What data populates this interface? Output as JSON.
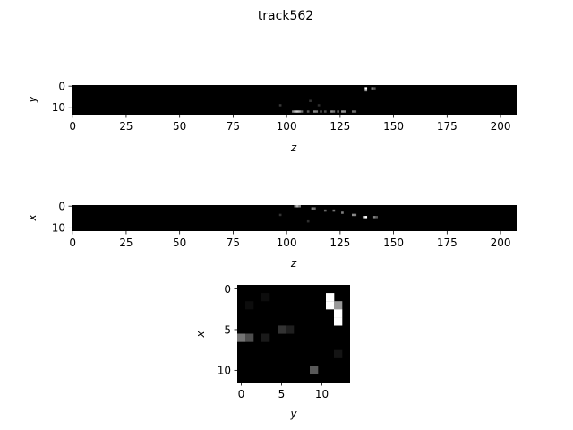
{
  "figure": {
    "title": "track562"
  },
  "chart_data": [
    {
      "type": "heatmap",
      "xlabel": "z",
      "ylabel": "y",
      "xlim": [
        0,
        207
      ],
      "ylim": [
        0,
        13
      ],
      "xticks": [
        0,
        25,
        50,
        75,
        100,
        125,
        150,
        175,
        200
      ],
      "yticks": [
        0,
        10
      ],
      "colormap": "gray",
      "bright_cells": [
        {
          "z": 97,
          "y": 9,
          "v": 0.22
        },
        {
          "z": 103,
          "y": 12,
          "v": 0.55
        },
        {
          "z": 104,
          "y": 12,
          "v": 0.75
        },
        {
          "z": 105,
          "y": 12,
          "v": 0.8
        },
        {
          "z": 106,
          "y": 12,
          "v": 0.7
        },
        {
          "z": 107,
          "y": 12,
          "v": 0.45
        },
        {
          "z": 110,
          "y": 12,
          "v": 0.35
        },
        {
          "z": 113,
          "y": 12,
          "v": 0.55
        },
        {
          "z": 114,
          "y": 12,
          "v": 0.5
        },
        {
          "z": 116,
          "y": 12,
          "v": 0.3
        },
        {
          "z": 118,
          "y": 12,
          "v": 0.3
        },
        {
          "z": 121,
          "y": 12,
          "v": 0.55
        },
        {
          "z": 122,
          "y": 12,
          "v": 0.45
        },
        {
          "z": 124,
          "y": 12,
          "v": 0.35
        },
        {
          "z": 126,
          "y": 12,
          "v": 0.6
        },
        {
          "z": 127,
          "y": 12,
          "v": 0.55
        },
        {
          "z": 131,
          "y": 12,
          "v": 0.45
        },
        {
          "z": 132,
          "y": 12,
          "v": 0.4
        },
        {
          "z": 137,
          "y": 1,
          "v": 1.0
        },
        {
          "z": 137,
          "y": 2,
          "v": 0.6
        },
        {
          "z": 140,
          "y": 1,
          "v": 0.5
        },
        {
          "z": 141,
          "y": 1,
          "v": 0.35
        },
        {
          "z": 111,
          "y": 7,
          "v": 0.2
        },
        {
          "z": 115,
          "y": 9,
          "v": 0.18
        }
      ]
    },
    {
      "type": "heatmap",
      "xlabel": "z",
      "ylabel": "x",
      "xlim": [
        0,
        207
      ],
      "ylim": [
        0,
        11
      ],
      "xticks": [
        0,
        25,
        50,
        75,
        100,
        125,
        150,
        175,
        200
      ],
      "yticks": [
        0,
        10
      ],
      "colormap": "gray",
      "bright_cells": [
        {
          "z": 104,
          "x": 0,
          "v": 0.55
        },
        {
          "z": 105,
          "x": 0,
          "v": 0.7
        },
        {
          "z": 106,
          "x": 0,
          "v": 0.5
        },
        {
          "z": 112,
          "x": 1,
          "v": 0.5
        },
        {
          "z": 113,
          "x": 1,
          "v": 0.45
        },
        {
          "z": 118,
          "x": 2,
          "v": 0.4
        },
        {
          "z": 122,
          "x": 2,
          "v": 0.45
        },
        {
          "z": 126,
          "x": 3,
          "v": 0.5
        },
        {
          "z": 131,
          "x": 4,
          "v": 0.55
        },
        {
          "z": 132,
          "x": 4,
          "v": 0.5
        },
        {
          "z": 136,
          "x": 5,
          "v": 0.6
        },
        {
          "z": 137,
          "x": 5,
          "v": 1.0
        },
        {
          "z": 141,
          "x": 5,
          "v": 0.5
        },
        {
          "z": 142,
          "x": 5,
          "v": 0.35
        },
        {
          "z": 97,
          "x": 4,
          "v": 0.2
        },
        {
          "z": 110,
          "x": 7,
          "v": 0.18
        }
      ]
    },
    {
      "type": "heatmap",
      "xlabel": "y",
      "ylabel": "x",
      "xlim": [
        0,
        13
      ],
      "ylim": [
        0,
        11
      ],
      "xticks": [
        0,
        5,
        10
      ],
      "yticks": [
        0,
        5,
        10
      ],
      "colormap": "gray",
      "cells": [
        {
          "col": 11,
          "row": 1,
          "v": 1.0
        },
        {
          "col": 11,
          "row": 2,
          "v": 1.0
        },
        {
          "col": 12,
          "row": 2,
          "v": 0.6
        },
        {
          "col": 12,
          "row": 3,
          "v": 1.0
        },
        {
          "col": 12,
          "row": 4,
          "v": 1.0
        },
        {
          "col": 0,
          "row": 6,
          "v": 0.45
        },
        {
          "col": 1,
          "row": 6,
          "v": 0.3
        },
        {
          "col": 5,
          "row": 5,
          "v": 0.2
        },
        {
          "col": 6,
          "row": 5,
          "v": 0.12
        },
        {
          "col": 3,
          "row": 6,
          "v": 0.1
        },
        {
          "col": 9,
          "row": 10,
          "v": 0.35
        },
        {
          "col": 12,
          "row": 8,
          "v": 0.08
        },
        {
          "col": 3,
          "row": 1,
          "v": 0.05
        },
        {
          "col": 1,
          "row": 2,
          "v": 0.05
        }
      ]
    }
  ]
}
